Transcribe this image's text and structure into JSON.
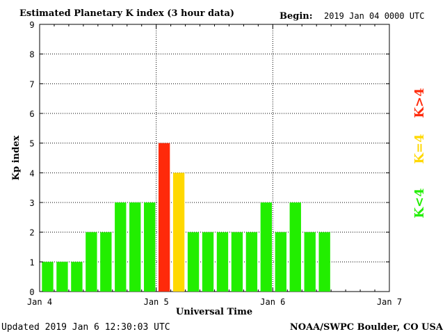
{
  "header": {
    "title": "Estimated Planetary K index (3 hour data)",
    "begin_label": "Begin:",
    "begin_value": "2019 Jan 04 0000 UTC"
  },
  "footer": {
    "updated": "Updated 2019 Jan  6 12:30:03 UTC",
    "source": "NOAA/SWPC Boulder, CO USA"
  },
  "legend": {
    "items": [
      {
        "label": "K>4",
        "color": "#ff2a0a"
      },
      {
        "label": "K=4",
        "color": "#ffd800"
      },
      {
        "label": "K<4",
        "color": "#22ee00"
      }
    ]
  },
  "colors": {
    "low": "#22ee00",
    "equal": "#ffd800",
    "high": "#ff2a0a"
  },
  "chart_data": {
    "type": "bar",
    "title": "Estimated Planetary K index (3 hour data)",
    "xlabel": "Universal Time",
    "ylabel": "Kp index",
    "ylim": [
      0,
      9
    ],
    "yticks": [
      "0",
      "1",
      "2",
      "3",
      "4",
      "5",
      "6",
      "7",
      "8",
      "9"
    ],
    "xticks": [
      "Jan 4",
      "Jan 5",
      "Jan 6",
      "Jan 7"
    ],
    "slots_per_day": 8,
    "days": 3,
    "grid": true,
    "values": [
      1,
      1,
      1,
      2,
      2,
      3,
      3,
      3,
      5,
      4,
      2,
      2,
      2,
      2,
      2,
      3,
      2,
      3,
      2,
      2
    ]
  }
}
